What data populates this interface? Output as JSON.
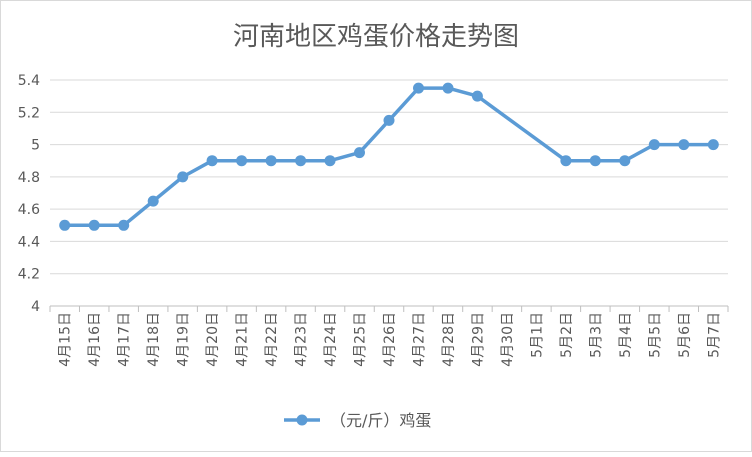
{
  "chart_data": {
    "type": "line",
    "title": "河南地区鸡蛋价格走势图",
    "categories": [
      "4月15日",
      "4月16日",
      "4月17日",
      "4月18日",
      "4月19日",
      "4月20日",
      "4月21日",
      "4月22日",
      "4月23日",
      "4月24日",
      "4月25日",
      "4月26日",
      "4月27日",
      "4月28日",
      "4月29日",
      "4月30日",
      "5月1日",
      "5月2日",
      "5月3日",
      "5月4日",
      "5月5日",
      "5月6日",
      "5月7日"
    ],
    "series": [
      {
        "name": "（元/斤）鸡蛋",
        "color": "#5b9bd5",
        "values": [
          4.5,
          4.5,
          4.5,
          4.65,
          4.8,
          4.9,
          4.9,
          4.9,
          4.9,
          4.9,
          4.95,
          5.15,
          5.35,
          5.35,
          5.3,
          null,
          null,
          4.9,
          4.9,
          4.9,
          5.0,
          5.0,
          5.0
        ]
      }
    ],
    "ylim": [
      4,
      5.4
    ],
    "yticks": [
      "4",
      "4.2",
      "4.4",
      "4.6",
      "4.8",
      "5",
      "5.2",
      "5.4"
    ],
    "grid": true,
    "legend_position": "bottom",
    "xlabel": "",
    "ylabel": ""
  }
}
